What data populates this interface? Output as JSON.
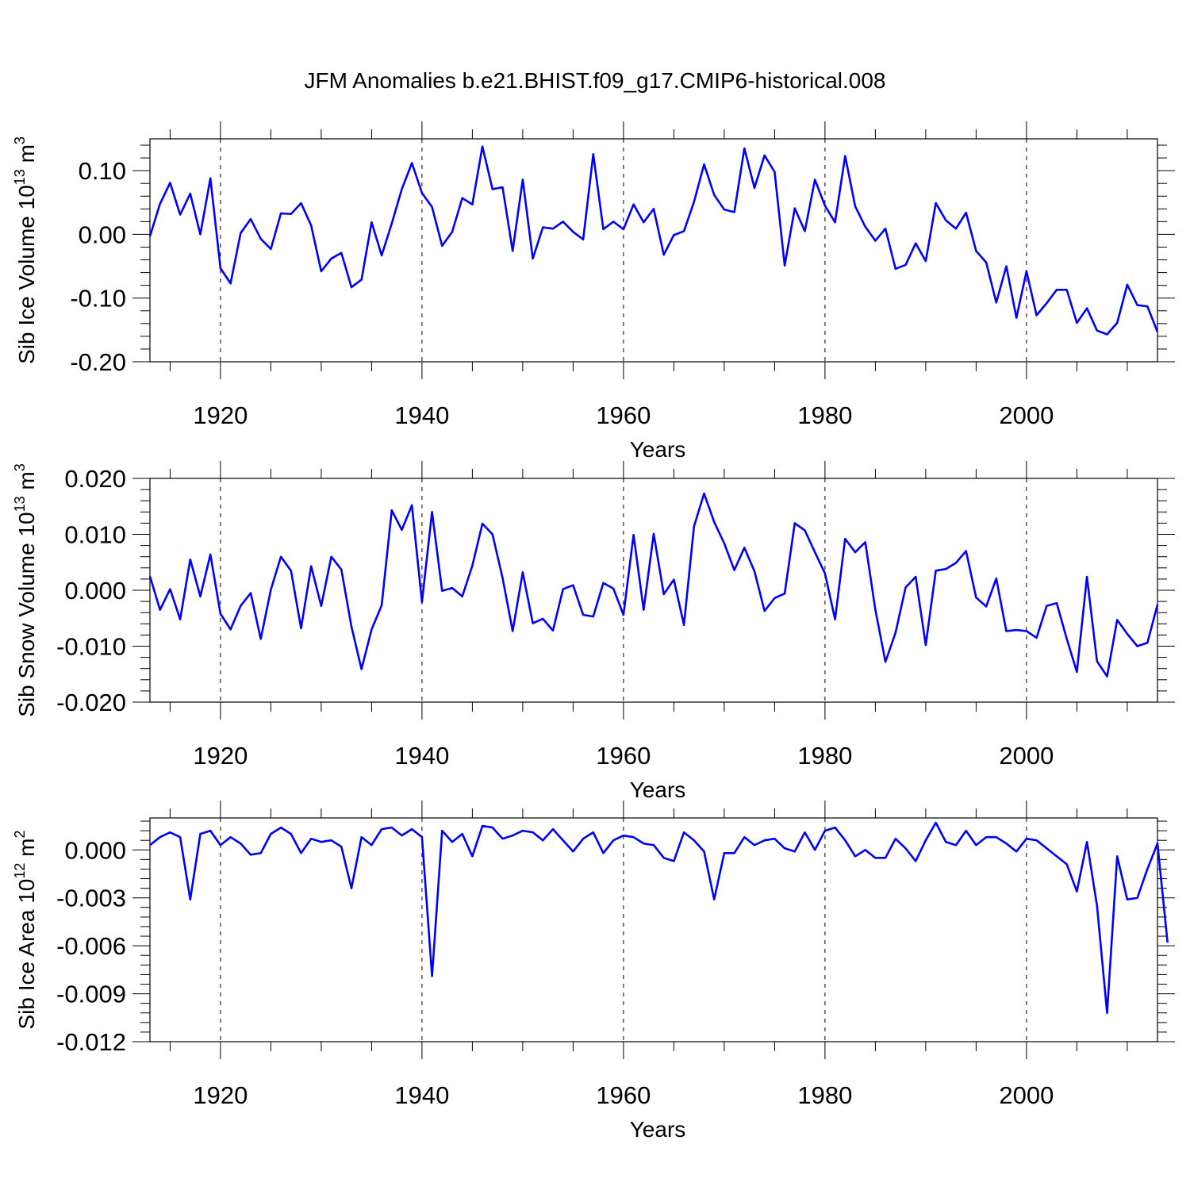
{
  "title": "JFM Anomalies b.e21.BHIST.f09_g17.CMIP6-historical.008",
  "line_color": "#0000ff",
  "chart_data": [
    {
      "type": "line",
      "ylabel_main": "Sib Ice Volume 10",
      "ylabel_exp": "13",
      "ylabel_unit": " m",
      "ylabel_unit_exp": "3",
      "xlabel": "Years",
      "xlim": [
        1913,
        2013
      ],
      "ylim": [
        -0.2,
        0.15
      ],
      "yticks": [
        -0.2,
        -0.1,
        0.0,
        0.1
      ],
      "ytick_labels": [
        "-0.20",
        "-0.10",
        "0.00",
        "0.10"
      ],
      "xticks": [
        1920,
        1940,
        1960,
        1980,
        2000
      ],
      "xtick_labels": [
        "1920",
        "1940",
        "1960",
        "1980",
        "2000"
      ],
      "x_start": 1913,
      "values": [
        -0.003,
        0.048,
        0.081,
        0.031,
        0.064,
        0.0,
        0.088,
        -0.053,
        -0.077,
        0.002,
        0.024,
        -0.007,
        -0.023,
        0.033,
        0.032,
        0.049,
        0.014,
        -0.058,
        -0.038,
        -0.029,
        -0.083,
        -0.071,
        0.019,
        -0.033,
        0.017,
        0.071,
        0.112,
        0.065,
        0.043,
        -0.018,
        0.004,
        0.057,
        0.047,
        0.138,
        0.071,
        0.074,
        -0.026,
        0.086,
        -0.038,
        0.011,
        0.009,
        0.02,
        0.004,
        -0.008,
        0.126,
        0.008,
        0.02,
        0.008,
        0.047,
        0.019,
        0.04,
        -0.032,
        -0.001,
        0.005,
        0.051,
        0.11,
        0.062,
        0.039,
        0.035,
        0.135,
        0.073,
        0.124,
        0.098,
        -0.049,
        0.041,
        0.005,
        0.086,
        0.045,
        0.019,
        0.123,
        0.044,
        0.012,
        -0.01,
        0.009,
        -0.054,
        -0.048,
        -0.014,
        -0.042,
        0.049,
        0.022,
        0.009,
        0.034,
        -0.026,
        -0.044,
        -0.107,
        -0.05,
        -0.131,
        -0.058,
        -0.127,
        -0.108,
        -0.087,
        -0.087,
        -0.139,
        -0.116,
        -0.151,
        -0.157,
        -0.139,
        -0.079,
        -0.111,
        -0.113,
        -0.153
      ]
    },
    {
      "type": "line",
      "ylabel_main": "Sib Snow Volume 10",
      "ylabel_exp": "13",
      "ylabel_unit": " m",
      "ylabel_unit_exp": "3",
      "xlabel": "Years",
      "xlim": [
        1913,
        2013
      ],
      "ylim": [
        -0.02,
        0.02
      ],
      "yticks": [
        -0.02,
        -0.01,
        0.0,
        0.01,
        0.02
      ],
      "ytick_labels": [
        "-0.020",
        "-0.010",
        "0.000",
        "0.010",
        "0.020"
      ],
      "xticks": [
        1920,
        1940,
        1960,
        1980,
        2000
      ],
      "xtick_labels": [
        "1920",
        "1940",
        "1960",
        "1980",
        "2000"
      ],
      "x_start": 1913,
      "values": [
        0.0025,
        -0.0035,
        0.0002,
        -0.0052,
        0.0055,
        -0.0011,
        0.0064,
        -0.0042,
        -0.007,
        -0.0028,
        -0.0005,
        -0.0087,
        0.0001,
        0.006,
        0.0035,
        -0.0068,
        0.0043,
        -0.0028,
        0.006,
        0.0037,
        -0.0065,
        -0.0141,
        -0.007,
        -0.0027,
        0.0143,
        0.0108,
        0.0152,
        -0.0021,
        0.014,
        -0.0001,
        0.0004,
        -0.0011,
        0.0044,
        0.0119,
        0.01,
        0.0022,
        -0.0073,
        0.0032,
        -0.0059,
        -0.0051,
        -0.0072,
        0.0002,
        0.0009,
        -0.0044,
        -0.0047,
        0.0013,
        0.0003,
        -0.0044,
        0.0099,
        -0.0035,
        0.0101,
        -0.0007,
        0.0019,
        -0.0062,
        0.0114,
        0.0173,
        0.0122,
        0.0084,
        0.0036,
        0.0076,
        0.0034,
        -0.0037,
        -0.0014,
        -0.0006,
        0.012,
        0.0107,
        0.0068,
        0.003,
        -0.0052,
        0.0092,
        0.0068,
        0.0086,
        -0.0035,
        -0.0128,
        -0.0076,
        0.0005,
        0.0024,
        -0.0098,
        0.0035,
        0.0038,
        0.0049,
        0.007,
        -0.0013,
        -0.0029,
        0.0021,
        -0.0073,
        -0.0071,
        -0.0073,
        -0.0085,
        -0.0028,
        -0.0023,
        -0.0087,
        -0.0146,
        0.0024,
        -0.0127,
        -0.0154,
        -0.0053,
        -0.0078,
        -0.01,
        -0.0094,
        -0.0026
      ]
    },
    {
      "type": "line",
      "ylabel_main": "Sib Ice Area 10",
      "ylabel_exp": "12",
      "ylabel_unit": " m",
      "ylabel_unit_exp": "2",
      "xlabel": "Years",
      "xlim": [
        1913,
        2013
      ],
      "ylim": [
        -0.012,
        0.002
      ],
      "yticks": [
        -0.012,
        -0.009,
        -0.006,
        -0.003,
        0.0
      ],
      "ytick_labels": [
        "-0.012",
        "-0.009",
        "-0.006",
        "-0.003",
        "0.000"
      ],
      "xticks": [
        1920,
        1940,
        1960,
        1980,
        2000
      ],
      "xtick_labels": [
        "1920",
        "1940",
        "1960",
        "1980",
        "2000"
      ],
      "x_start": 1913,
      "values": [
        0.0003,
        0.0008,
        0.0011,
        0.0008,
        -0.0031,
        0.001,
        0.0012,
        0.0003,
        0.0008,
        0.0004,
        -0.0003,
        -0.0002,
        0.001,
        0.0014,
        0.001,
        -0.0002,
        0.0007,
        0.0005,
        0.0006,
        0.0002,
        -0.0024,
        0.0008,
        0.0003,
        0.0013,
        0.0014,
        0.0009,
        0.0013,
        0.0008,
        -0.0079,
        0.0012,
        0.0005,
        0.001,
        -0.0004,
        0.0015,
        0.0014,
        0.0007,
        0.0009,
        0.0012,
        0.0011,
        0.0006,
        0.0013,
        0.0006,
        -0.0001,
        0.0007,
        0.0011,
        -0.0002,
        0.0006,
        0.0009,
        0.0008,
        0.0004,
        0.0003,
        -0.0005,
        -0.0007,
        0.0011,
        0.0006,
        -0.0001,
        -0.0031,
        -0.0002,
        -0.0002,
        0.0008,
        0.0003,
        0.0006,
        0.0007,
        0.0001,
        -0.0001,
        0.0011,
        0.0,
        0.0012,
        0.0014,
        0.0006,
        -0.0004,
        0.0,
        -0.0005,
        -0.0005,
        0.0007,
        0.0001,
        -0.0007,
        0.0006,
        0.0017,
        0.0005,
        0.0003,
        0.0012,
        0.0003,
        0.0008,
        0.0008,
        0.0004,
        -0.0001,
        0.0007,
        0.0006,
        0.0001,
        -0.0004,
        -0.0009,
        -0.0026,
        0.0005,
        -0.0035,
        -0.0102,
        -0.0004,
        -0.0031,
        -0.003,
        -0.0012,
        0.0004,
        -0.0058
      ]
    }
  ]
}
